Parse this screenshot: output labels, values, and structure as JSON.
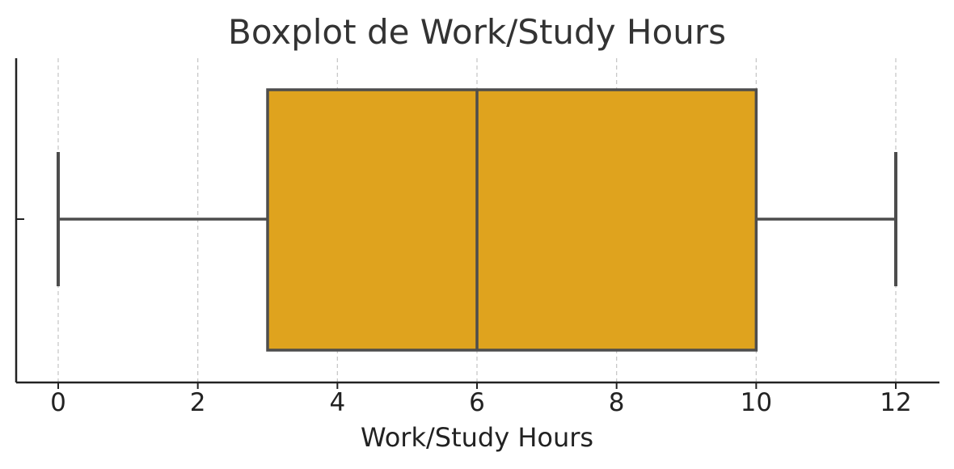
{
  "chart_data": {
    "type": "boxplot",
    "title": "Boxplot de Work/Study Hours",
    "xlabel": "Work/Study Hours",
    "ylabel": "",
    "xlim": [
      -0.3,
      12.3
    ],
    "xticks": [
      0,
      2,
      4,
      6,
      8,
      10,
      12
    ],
    "grid": "vertical dashed",
    "orientation": "horizontal",
    "box": {
      "min": 0,
      "q1": 3,
      "median": 6,
      "q3": 10,
      "max": 12
    },
    "colors": {
      "box_fill": "#DFA31E",
      "line": "#4d4d4d",
      "grid": "#c8c8c8",
      "axis": "#222222"
    }
  }
}
